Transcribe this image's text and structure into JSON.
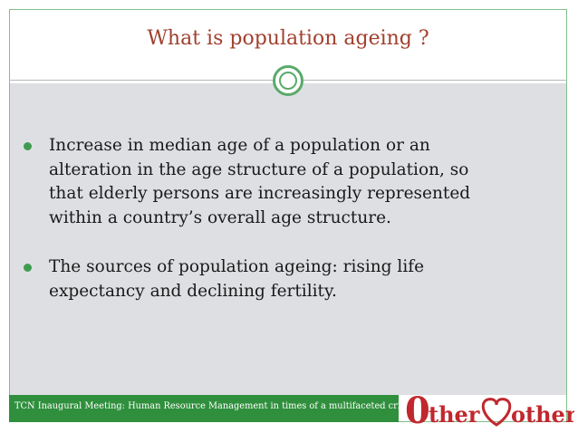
{
  "slide": {
    "title": "What is population ageing ?",
    "bullets": [
      {
        "lines": [
          "Increase in median age of a population or an",
          "alteration in the age structure of a population, so",
          "that elderly persons are increasingly represented",
          "within a country’s overall age structure."
        ]
      },
      {
        "lines": [
          "The sources of population ageing: rising life",
          "expectancy and declining fertility."
        ]
      }
    ]
  },
  "footer": {
    "text": "TCN Inaugural Meeting: Human Resource Management in times of a multifaceted crisis"
  },
  "logo": {
    "left_text": "ther",
    "right_text": "other",
    "initial_glyph": "0",
    "heart_icon": "heart-icon"
  },
  "colors": {
    "title": "#a0402e",
    "accent_green": "#2f8f3c",
    "bullet": "#3f9c4f",
    "content_bg": "#dedfe3",
    "logo_red": "#c0282d"
  }
}
